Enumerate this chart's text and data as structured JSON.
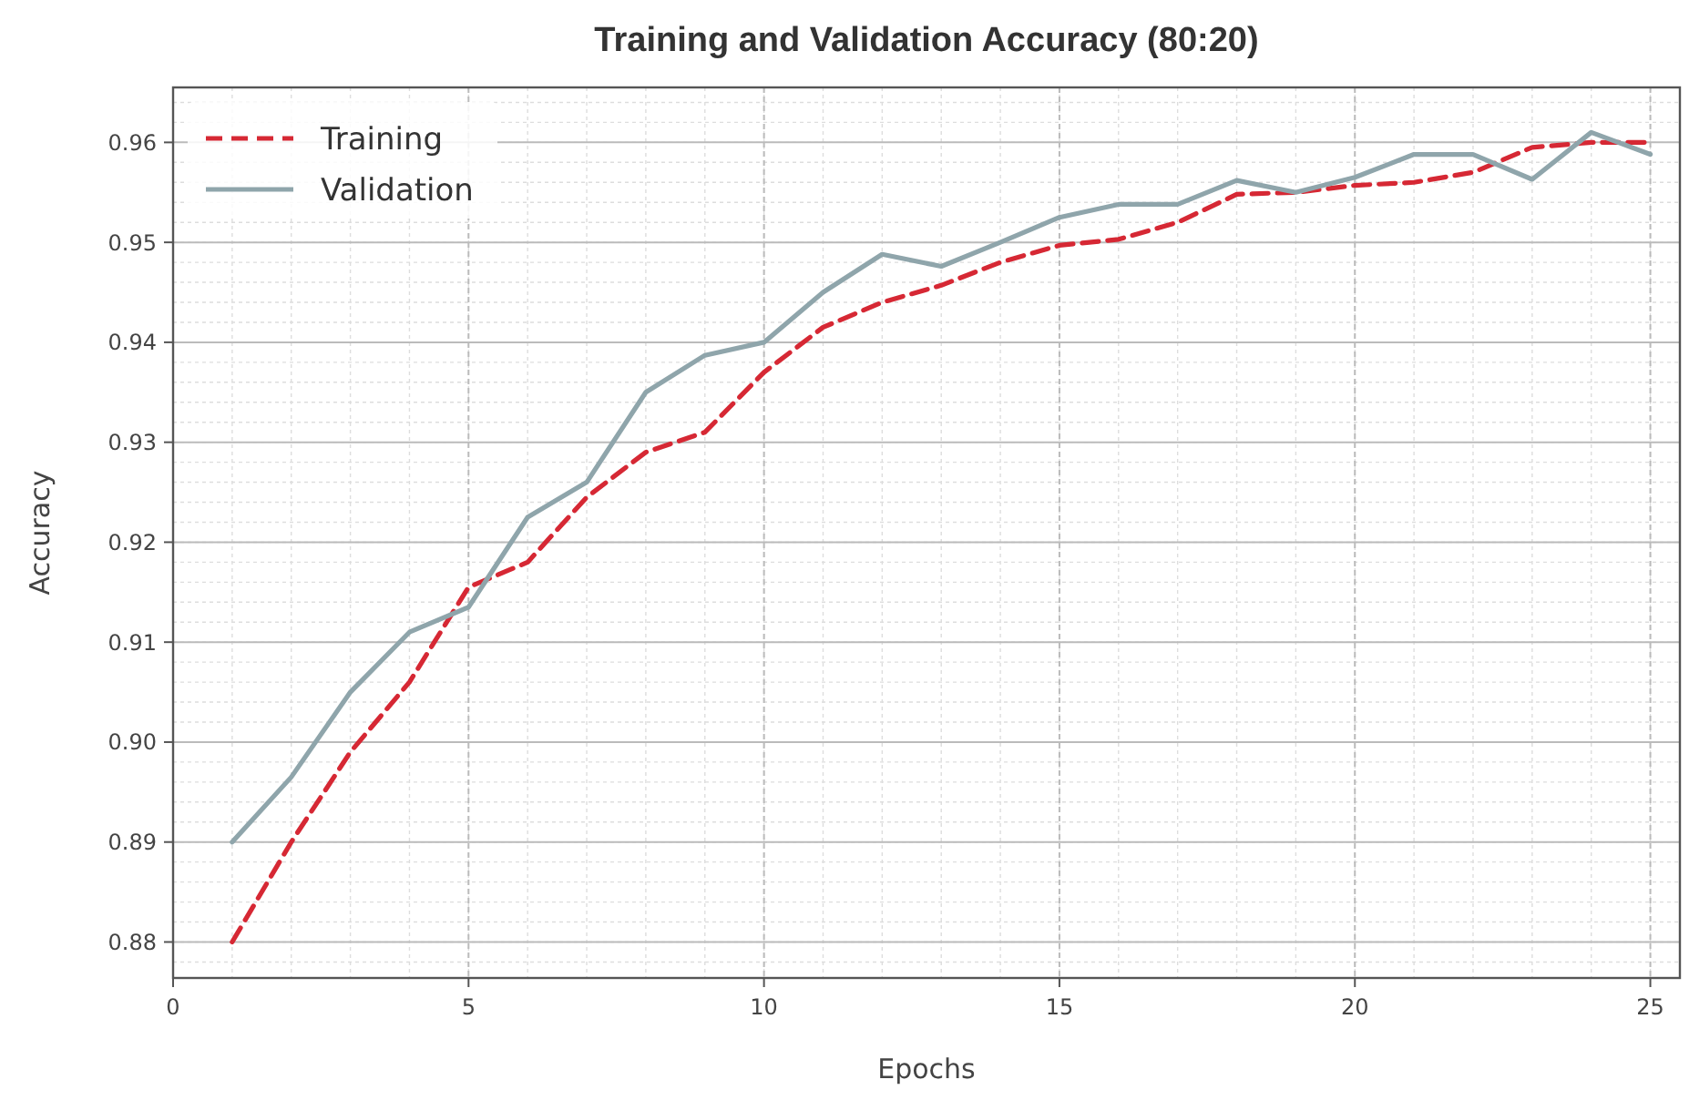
{
  "chart_data": {
    "type": "line",
    "title": "Training and Validation Accuracy (80:20)",
    "xlabel": "Epochs",
    "ylabel": "Accuracy",
    "x": [
      1,
      2,
      3,
      4,
      5,
      6,
      7,
      8,
      9,
      10,
      11,
      12,
      13,
      14,
      15,
      16,
      17,
      18,
      19,
      20,
      21,
      22,
      23,
      24,
      25
    ],
    "series": [
      {
        "name": "Training",
        "color": "#d62834",
        "line_style": "dashed",
        "values": [
          0.88,
          0.89,
          0.899,
          0.906,
          0.9155,
          0.918,
          0.9245,
          0.929,
          0.931,
          0.937,
          0.9415,
          0.944,
          0.9457,
          0.948,
          0.9497,
          0.9503,
          0.952,
          0.9548,
          0.955,
          0.9557,
          0.956,
          0.957,
          0.9595,
          0.96,
          0.96
        ]
      },
      {
        "name": "Validation",
        "color": "#8fa5ab",
        "line_style": "solid",
        "values": [
          0.89,
          0.8965,
          0.905,
          0.911,
          0.9135,
          0.9225,
          0.926,
          0.935,
          0.9387,
          0.94,
          0.945,
          0.9488,
          0.9476,
          0.95,
          0.9525,
          0.9538,
          0.9538,
          0.9562,
          0.955,
          0.9565,
          0.9588,
          0.9588,
          0.9563,
          0.961,
          0.9588
        ]
      }
    ],
    "xlim": [
      0,
      25.5
    ],
    "xticks": [
      0,
      5,
      10,
      15,
      20,
      25
    ],
    "ylim": [
      0.8764,
      0.9655
    ],
    "yticks": [
      {
        "value": 0.88,
        "label": "0.88"
      },
      {
        "value": 0.89,
        "label": "0.89"
      },
      {
        "value": 0.9,
        "label": "0.90"
      },
      {
        "value": 0.91,
        "label": "0.91"
      },
      {
        "value": 0.92,
        "label": "0.92"
      },
      {
        "value": 0.93,
        "label": "0.93"
      },
      {
        "value": 0.94,
        "label": "0.94"
      },
      {
        "value": 0.95,
        "label": "0.95"
      },
      {
        "value": 0.96,
        "label": "0.96"
      }
    ],
    "grid": true,
    "legend": "top left",
    "marker": "none"
  }
}
